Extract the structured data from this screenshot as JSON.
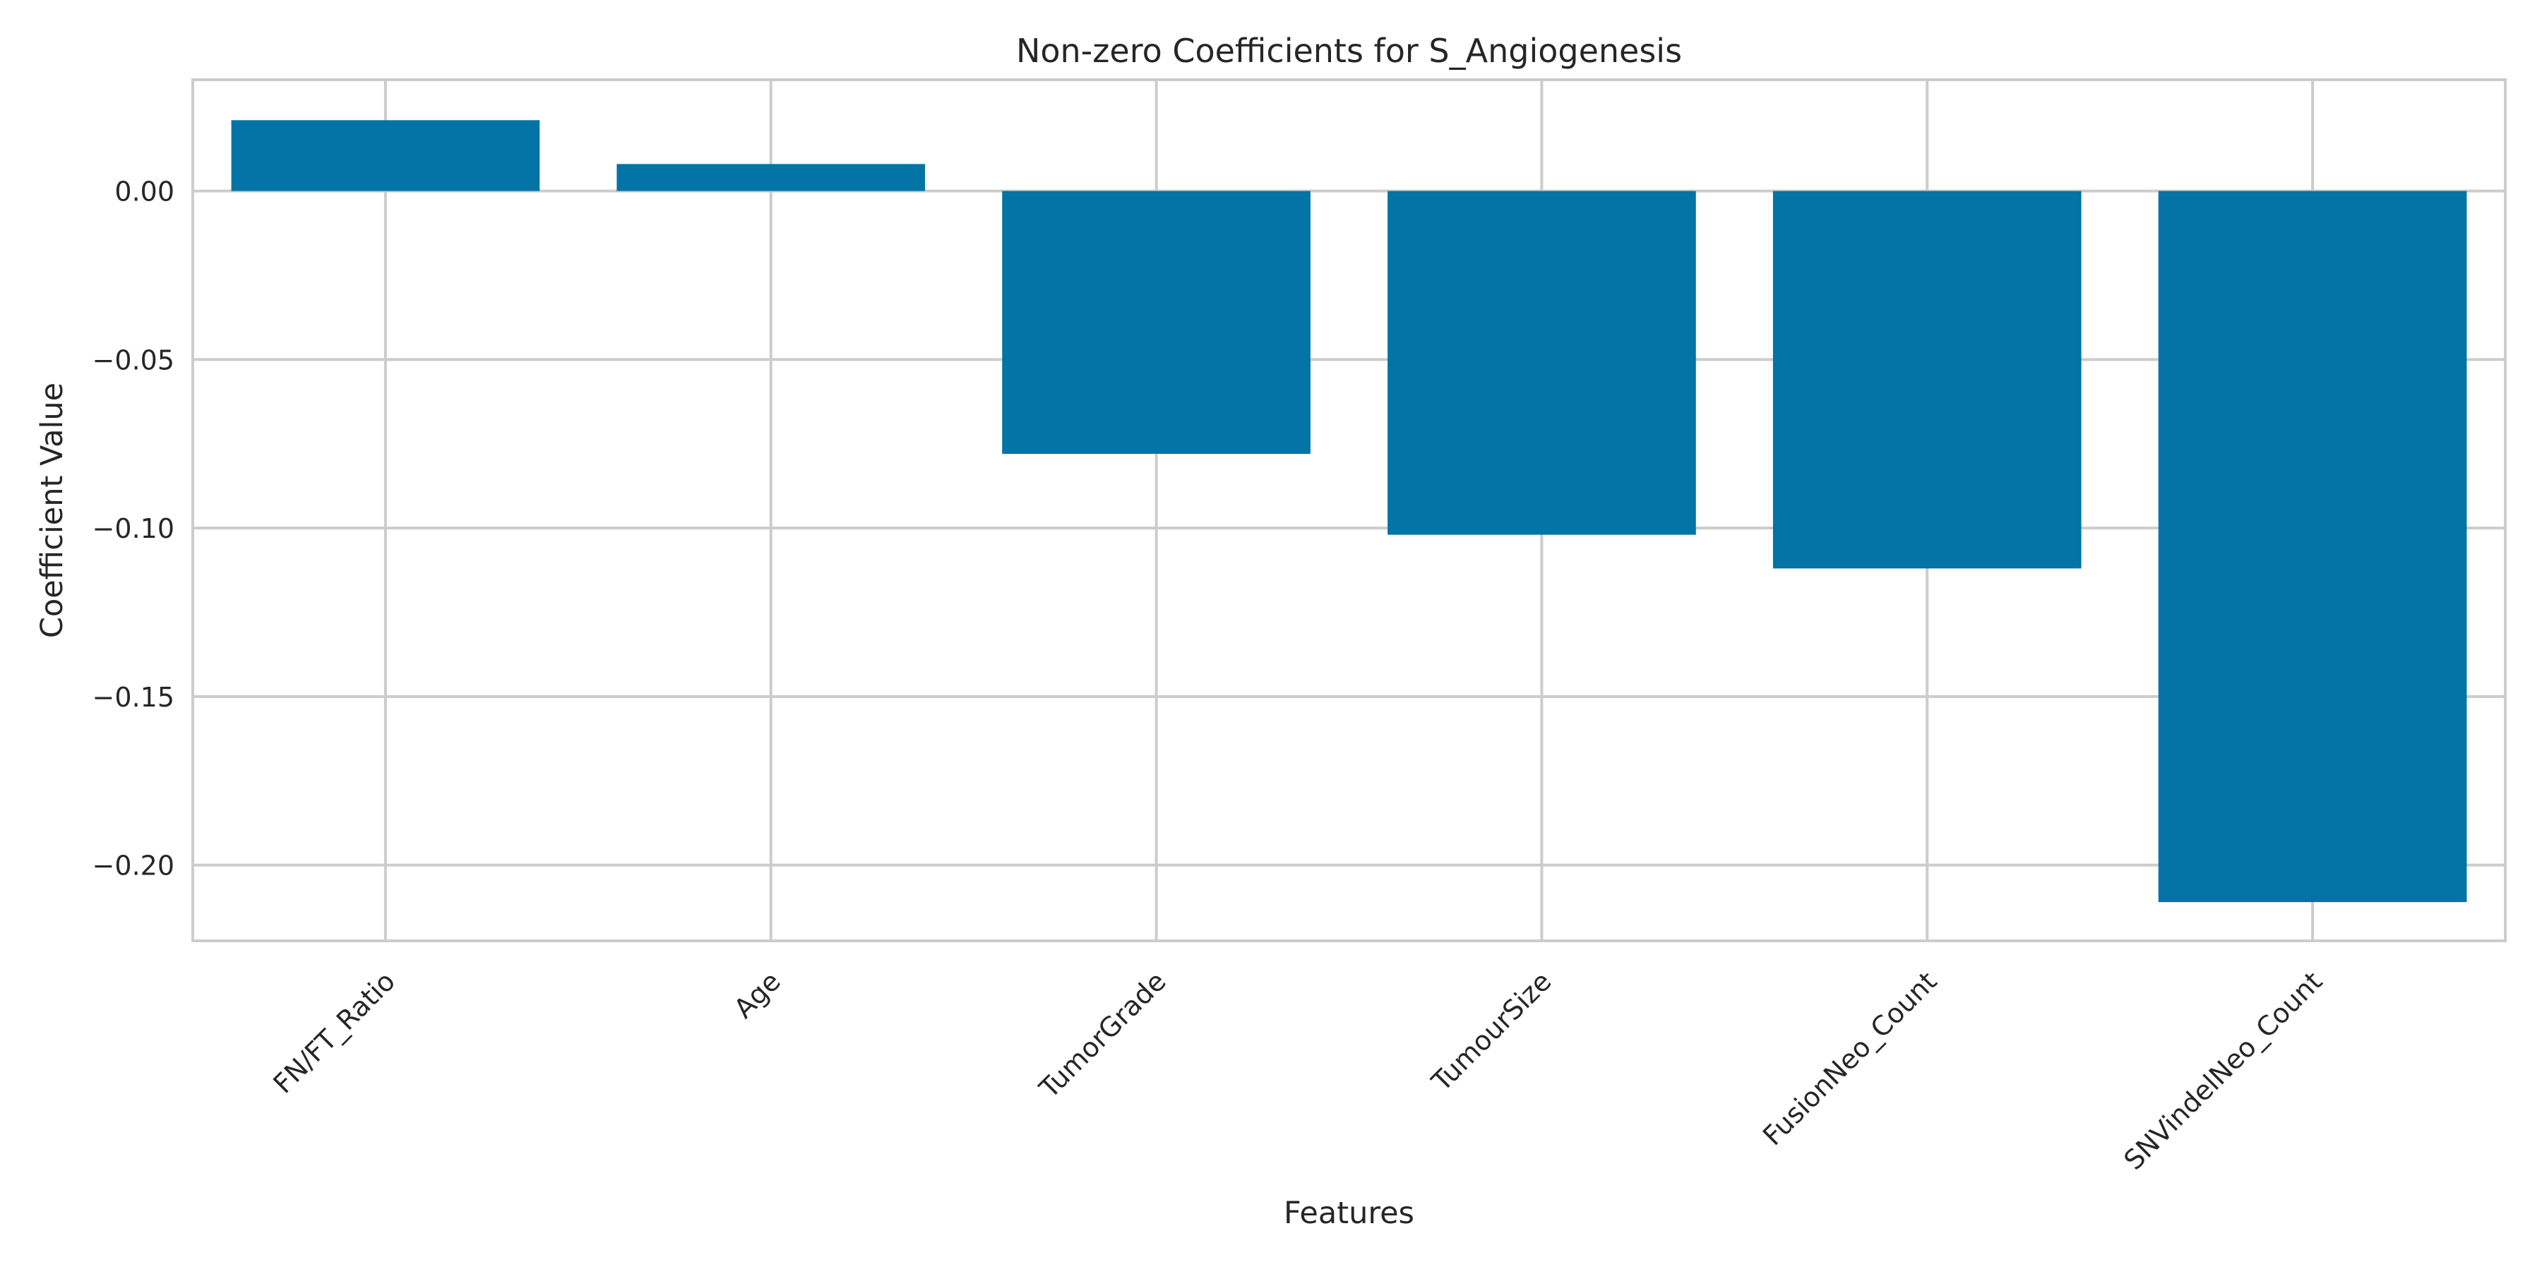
{
  "chart_data": {
    "type": "bar",
    "title": "Non-zero Coefficients for S_Angiogenesis",
    "xlabel": "Features",
    "ylabel": "Coefficient Value",
    "categories": [
      "FN/FT_Ratio",
      "Age",
      "TumorGrade",
      "TumourSize",
      "FusionNeo_Count",
      "SNVindelNeo_Count"
    ],
    "values": [
      0.021,
      0.008,
      -0.078,
      -0.102,
      -0.112,
      -0.211
    ],
    "ylim": [
      -0.2225,
      0.033
    ],
    "yticks": [
      0.0,
      -0.05,
      -0.1,
      -0.15,
      -0.2
    ],
    "ytick_labels": [
      "0.00",
      "−0.05",
      "−0.10",
      "−0.15",
      "−0.20"
    ],
    "grid": true,
    "bar_color": "#0473a6"
  }
}
